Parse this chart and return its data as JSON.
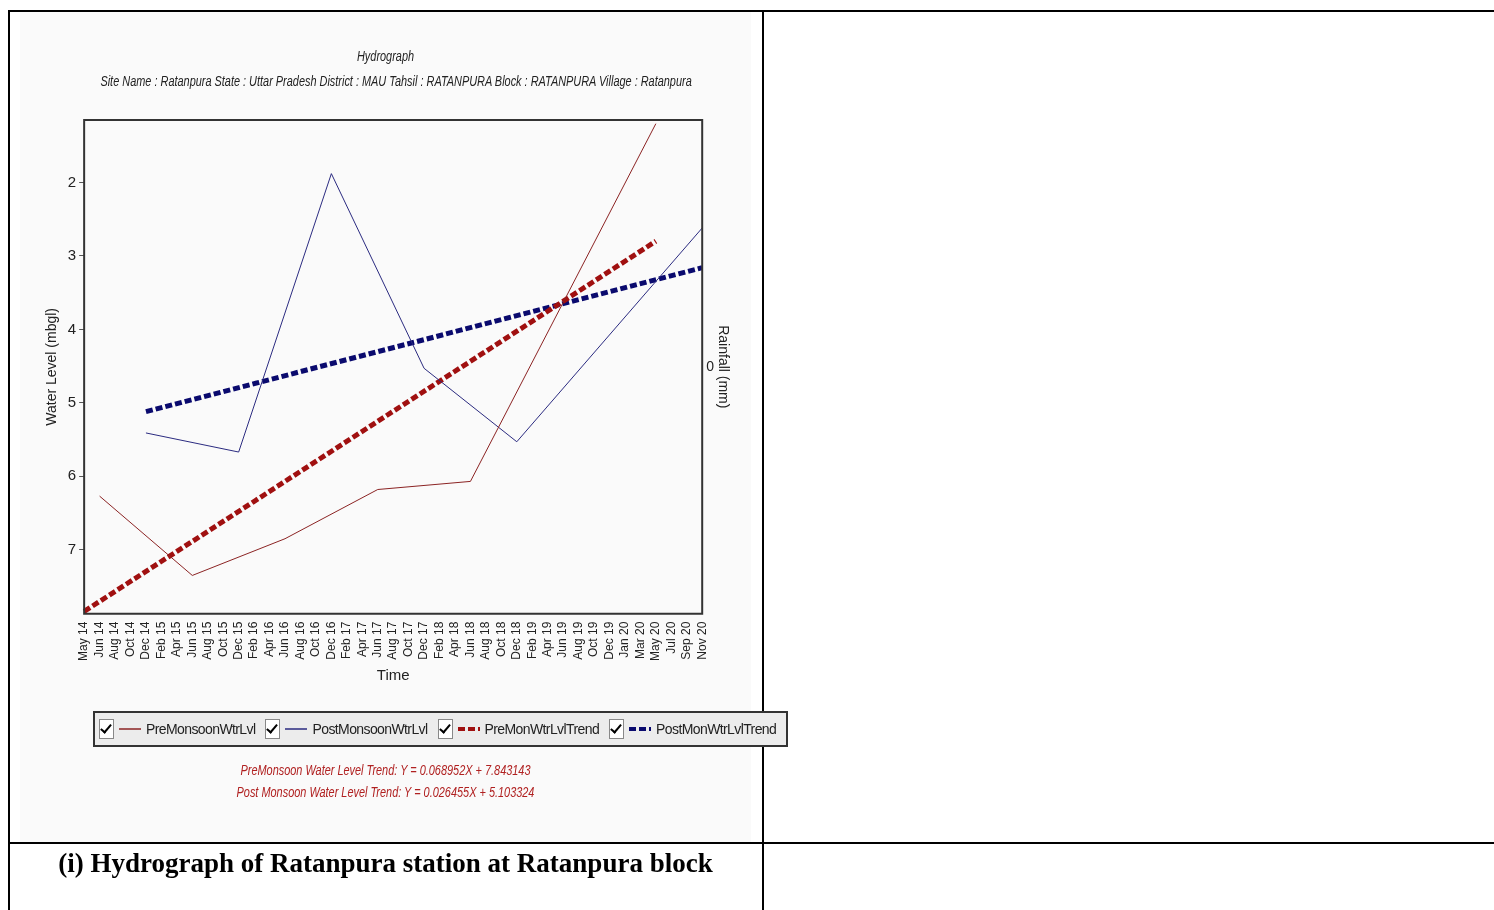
{
  "chart_data": {
    "type": "line",
    "title": "Hydrograph",
    "subtitle": "Site Name : Ratanpura  State : Uttar Pradesh District : MAU  Tahsil : RATANPURA  Block : RATANPURA Village : Ratanpura",
    "xlabel": "Time",
    "ylabel": "Water Level (mbgl)",
    "y2label": "Rainfall (mm)",
    "categories": [
      "May 14",
      "Jun 14",
      "Aug 14",
      "Oct 14",
      "Dec 14",
      "Feb 15",
      "Apr 15",
      "Jun 15",
      "Aug 15",
      "Oct 15",
      "Dec 15",
      "Feb 16",
      "Apr 16",
      "Jun 16",
      "Aug 16",
      "Oct 16",
      "Dec 16",
      "Feb 17",
      "Apr 17",
      "Jun 17",
      "Aug 17",
      "Oct 17",
      "Dec 17",
      "Feb 18",
      "Apr 18",
      "Jun 18",
      "Aug 18",
      "Oct 18",
      "Dec 18",
      "Feb 19",
      "Apr 19",
      "Jun 19",
      "Aug 19",
      "Oct 19",
      "Dec 19",
      "Jan 20",
      "Mar 20",
      "May 20",
      "Jul 20",
      "Sep 20",
      "Nov 20"
    ],
    "series": [
      {
        "name": "PreMonsoonWtrLvl",
        "color": "#8b2323",
        "line_style": "solid",
        "values": [
          null,
          6.27,
          null,
          null,
          null,
          null,
          null,
          7.35,
          null,
          null,
          null,
          null,
          null,
          6.85,
          null,
          null,
          null,
          null,
          null,
          6.18,
          null,
          null,
          null,
          null,
          null,
          6.07,
          null,
          null,
          null,
          null,
          null,
          null,
          null,
          null,
          null,
          null,
          null,
          1.2,
          null,
          null,
          null
        ]
      },
      {
        "name": "PostMonsoonWtrLvl",
        "color": "#2b2b80",
        "line_style": "solid",
        "values": [
          null,
          null,
          null,
          null,
          5.41,
          null,
          null,
          null,
          null,
          null,
          5.67,
          null,
          null,
          null,
          null,
          null,
          1.88,
          null,
          null,
          null,
          null,
          null,
          4.53,
          null,
          null,
          null,
          null,
          null,
          5.53,
          null,
          null,
          null,
          null,
          null,
          null,
          null,
          null,
          null,
          null,
          null,
          2.62
        ]
      },
      {
        "name": "PreMonWtrLvlTrend",
        "color": "#a01010",
        "line_style": "dashed",
        "values": [
          7.84,
          null,
          null,
          null,
          null,
          null,
          null,
          null,
          null,
          null,
          null,
          null,
          null,
          null,
          null,
          null,
          null,
          null,
          null,
          null,
          null,
          null,
          null,
          null,
          null,
          null,
          null,
          null,
          null,
          null,
          null,
          null,
          null,
          null,
          null,
          null,
          null,
          2.8,
          null,
          null,
          null
        ]
      },
      {
        "name": "PostMonWtrLvlTrend",
        "color": "#0a0a6e",
        "line_style": "dashed",
        "values": [
          null,
          null,
          null,
          null,
          5.12,
          null,
          null,
          null,
          null,
          null,
          null,
          null,
          null,
          null,
          null,
          null,
          null,
          null,
          null,
          null,
          null,
          null,
          null,
          null,
          null,
          null,
          null,
          null,
          null,
          null,
          null,
          null,
          null,
          null,
          null,
          null,
          null,
          null,
          null,
          null,
          3.16
        ]
      }
    ],
    "ylim": [
      7.87,
      1.15
    ],
    "yticks": [
      2,
      3,
      4,
      5,
      6,
      7
    ],
    "grid": false,
    "legend": "bottom",
    "marker": "none",
    "annotations": [
      "0",
      "PreMonsoon Water Level Trend: Y = 0.068952X + 7.843143",
      "Post Monsoon Water Level Trend: Y = 0.026455X + 5.103324",
      "(i) Hydrograph of Ratanpura station at Ratanpura block"
    ]
  }
}
